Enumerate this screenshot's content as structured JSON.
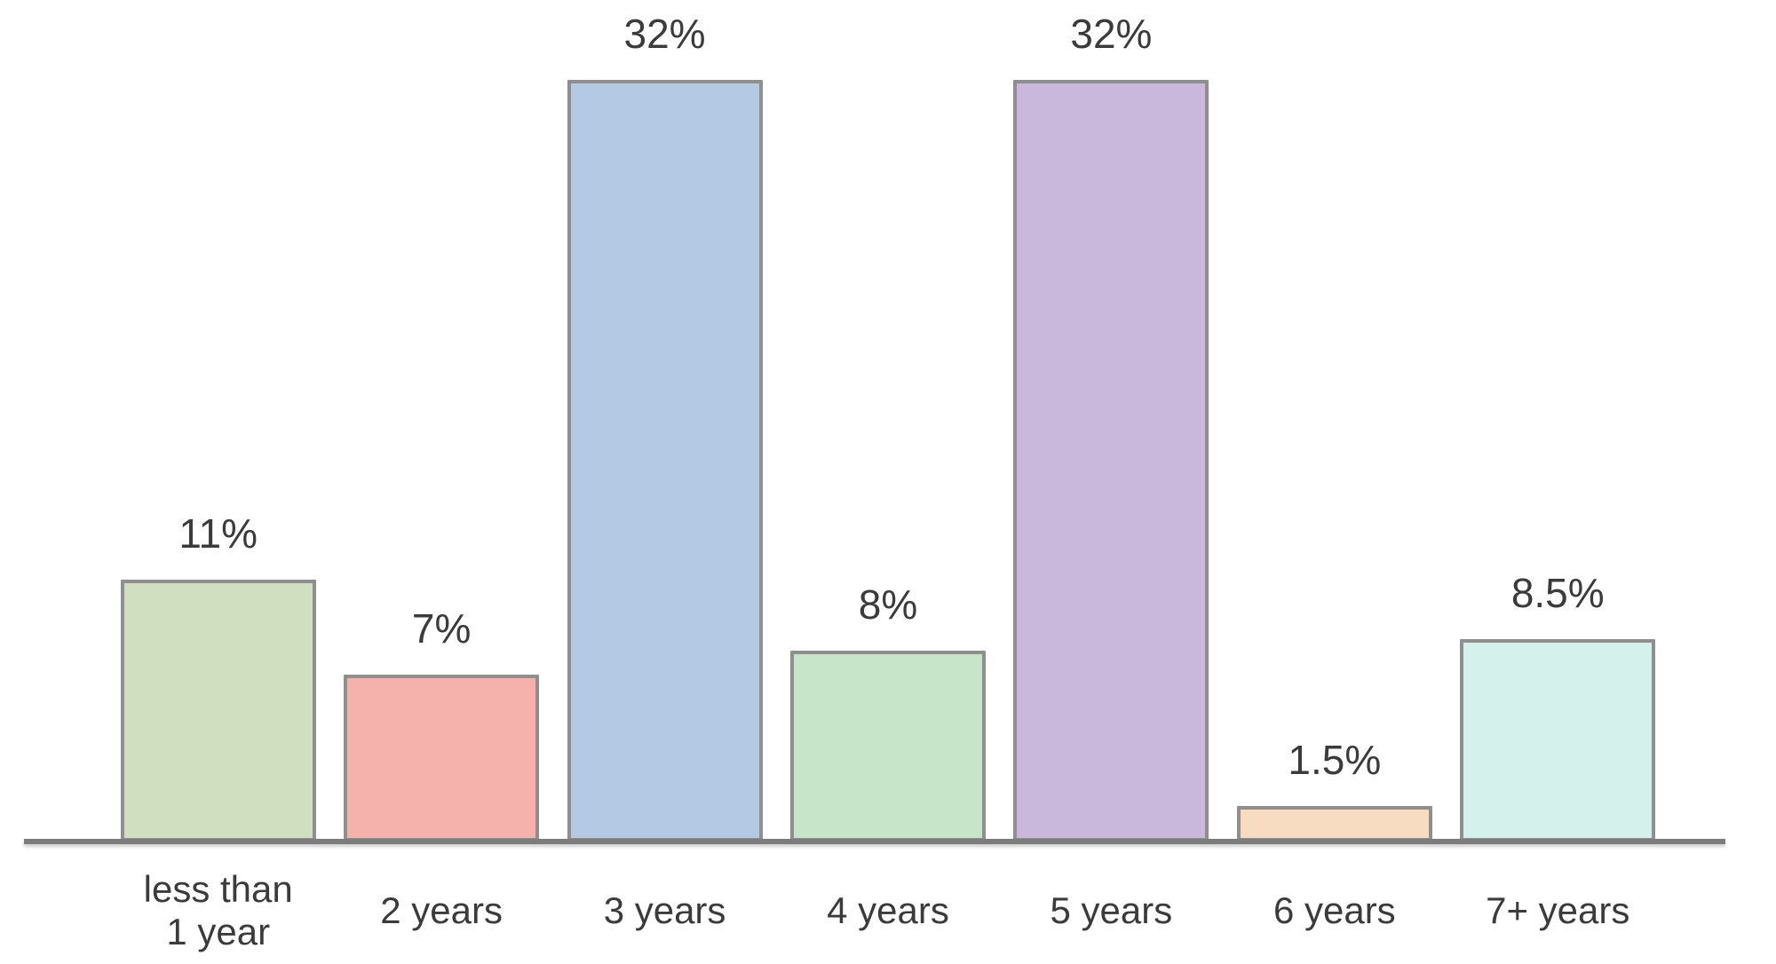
{
  "chart_data": {
    "type": "bar",
    "title": "",
    "xlabel": "",
    "ylabel": "",
    "ylim": [
      0,
      32
    ],
    "grid": false,
    "legend": false,
    "categories": [
      "less than 1 year",
      "2 years",
      "3 years",
      "4 years",
      "5 years",
      "6 years",
      "7+ years"
    ],
    "category_lines": [
      [
        "less than",
        "1 year"
      ],
      [
        "2 years"
      ],
      [
        "3 years"
      ],
      [
        "4 years"
      ],
      [
        "5 years"
      ],
      [
        "6 years"
      ],
      [
        "7+ years"
      ]
    ],
    "values": [
      11,
      7,
      32,
      8,
      32,
      1.5,
      8.5
    ],
    "value_labels": [
      "11%",
      "7%",
      "32%",
      "8%",
      "32%",
      "1.5%",
      "8.5%"
    ],
    "bar_colors": [
      "#cfdfc0",
      "#f5b1ac",
      "#b4c9e4",
      "#c6e5c9",
      "#c9b8dc",
      "#f8dcc2",
      "#d5f1ec"
    ],
    "bar_border_color": "#8f8f8f",
    "axis_color": "#7c7c7c",
    "label_color": "#3b3b3b",
    "background_color": "#ffffff"
  }
}
